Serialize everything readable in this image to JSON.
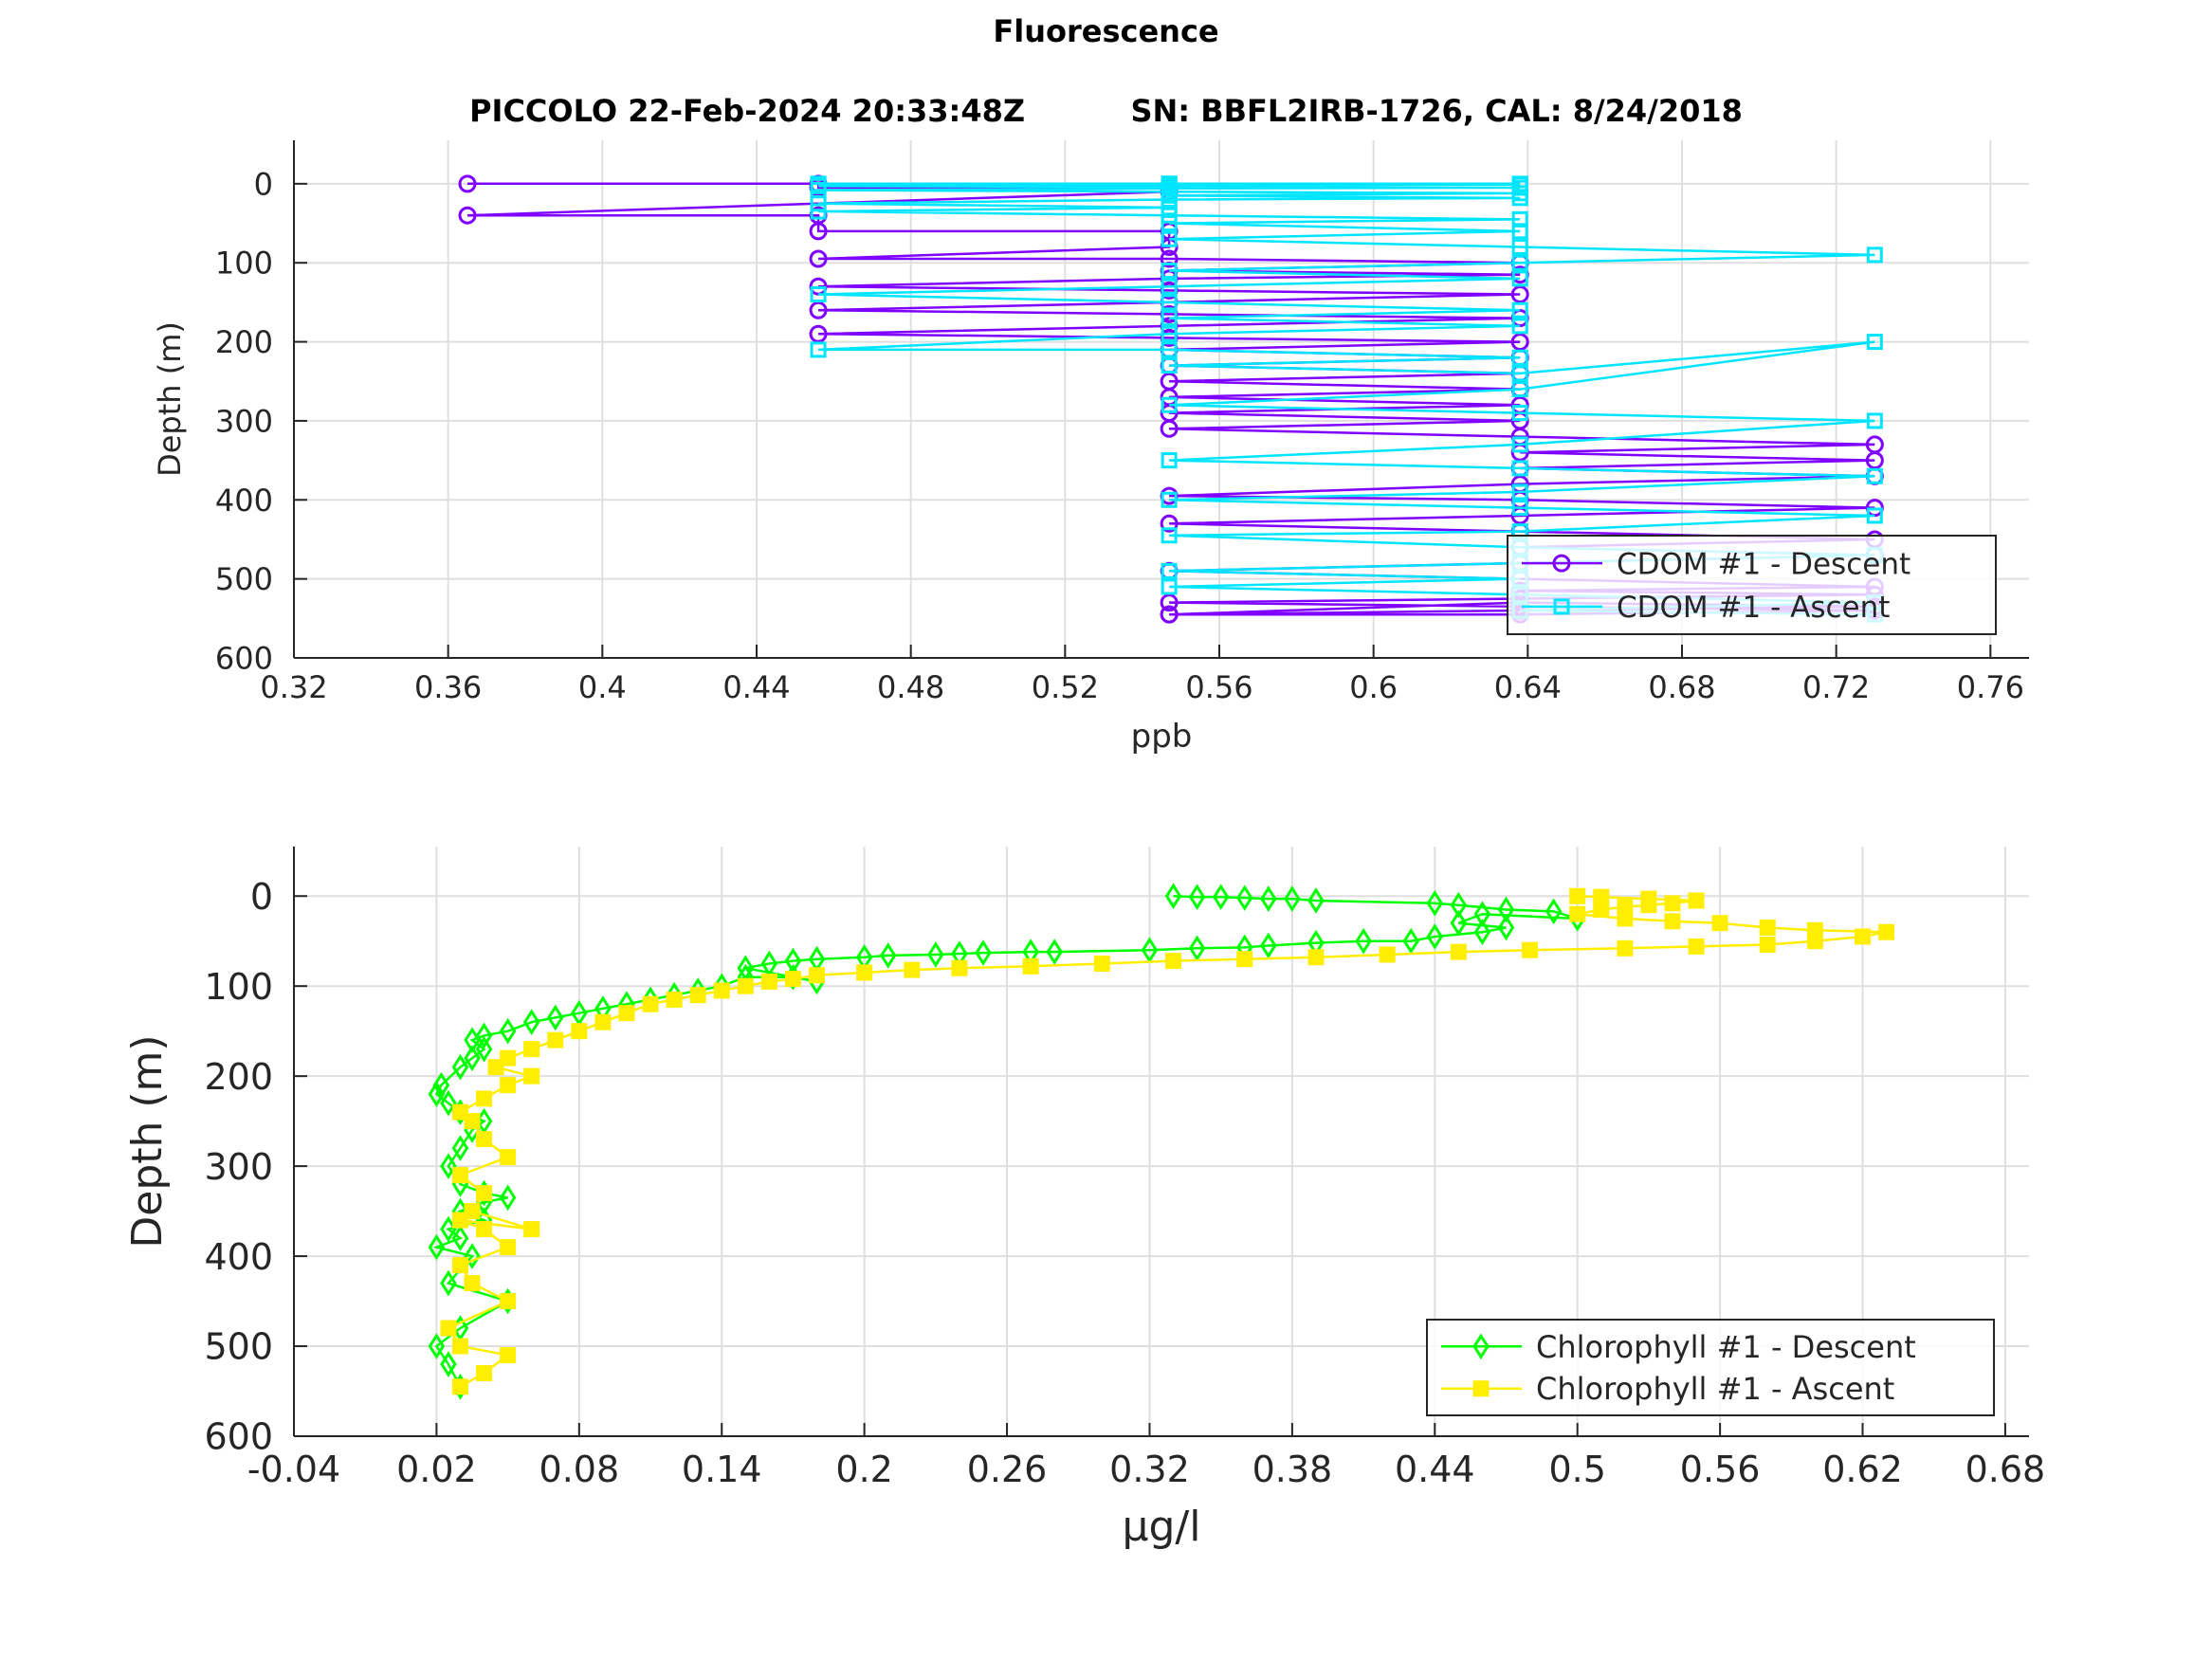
{
  "figure": {
    "title": "Fluorescence",
    "subtitle": "PICCOLO 22-Feb-2024 20:33:48Z          SN: BBFL2IRB-1726, CAL: 8/24/2018"
  },
  "chart_data": [
    {
      "type": "line",
      "xlabel": "ppb",
      "ylabel": "Depth (m)",
      "xlim": [
        0.32,
        0.77
      ],
      "ylim": [
        600,
        -55
      ],
      "y_reversed": true,
      "xticks": [
        "0.32",
        "0.36",
        "0.4",
        "0.44",
        "0.48",
        "0.52",
        "0.56",
        "0.6",
        "0.64",
        "0.68",
        "0.72",
        "0.76"
      ],
      "yticks": [
        "0",
        "100",
        "200",
        "300",
        "400",
        "500",
        "600"
      ],
      "grid": true,
      "legend_position": "bottom-right",
      "colors": {
        "descent": "#7f00ff",
        "ascent": "#00e5ff"
      },
      "series": [
        {
          "name": "CDOM #1 - Descent",
          "marker": "circle",
          "color": "#7f00ff",
          "x": [
            0.365,
            0.456,
            0.456,
            0.547,
            0.547,
            0.365,
            0.456,
            0.456,
            0.547,
            0.547,
            0.456,
            0.547,
            0.638,
            0.547,
            0.638,
            0.547,
            0.456,
            0.547,
            0.638,
            0.547,
            0.456,
            0.547,
            0.638,
            0.547,
            0.456,
            0.547,
            0.638,
            0.547,
            0.638,
            0.547,
            0.638,
            0.547,
            0.638,
            0.547,
            0.638,
            0.547,
            0.638,
            0.547,
            0.638,
            0.73,
            0.638,
            0.73,
            0.638,
            0.73,
            0.638,
            0.547,
            0.638,
            0.73,
            0.638,
            0.547,
            0.638,
            0.73,
            0.638,
            0.73,
            0.638,
            0.547,
            0.638,
            0.73,
            0.638,
            0.73,
            0.638,
            0.547,
            0.638,
            0.73,
            0.638,
            0.547,
            0.638,
            0.73,
            0.638,
            0.547
          ],
          "y": [
            0,
            0,
            5,
            5,
            10,
            40,
            40,
            60,
            60,
            80,
            95,
            95,
            100,
            110,
            115,
            120,
            130,
            135,
            140,
            150,
            160,
            165,
            170,
            180,
            190,
            195,
            200,
            210,
            220,
            230,
            240,
            250,
            260,
            270,
            280,
            290,
            300,
            310,
            320,
            330,
            340,
            350,
            360,
            370,
            380,
            395,
            400,
            410,
            420,
            430,
            440,
            450,
            460,
            470,
            480,
            490,
            500,
            510,
            515,
            520,
            525,
            530,
            535,
            540,
            545,
            545,
            540,
            535,
            530,
            545
          ]
        },
        {
          "name": "CDOM #1 - Ascent",
          "marker": "square",
          "color": "#00e5ff",
          "x": [
            0.73,
            0.638,
            0.73,
            0.638,
            0.547,
            0.638,
            0.547,
            0.638,
            0.73,
            0.638,
            0.547,
            0.638,
            0.73,
            0.638,
            0.547,
            0.638,
            0.73,
            0.638,
            0.547,
            0.638,
            0.73,
            0.638,
            0.547,
            0.638,
            0.73,
            0.638,
            0.547,
            0.638,
            0.547,
            0.456,
            0.547,
            0.638,
            0.547,
            0.638,
            0.547,
            0.456,
            0.547,
            0.638,
            0.547,
            0.638,
            0.73,
            0.638,
            0.547,
            0.638,
            0.547,
            0.638,
            0.547,
            0.456,
            0.547,
            0.456,
            0.547,
            0.638,
            0.547,
            0.638,
            0.547,
            0.456,
            0.547,
            0.638,
            0.547,
            0.456,
            0.547,
            0.638,
            0.547,
            0.456,
            0.547,
            0.638
          ],
          "y": [
            545,
            540,
            530,
            520,
            510,
            500,
            490,
            480,
            470,
            460,
            445,
            440,
            420,
            410,
            400,
            390,
            370,
            360,
            350,
            330,
            300,
            290,
            280,
            260,
            200,
            240,
            230,
            220,
            210,
            210,
            190,
            180,
            170,
            160,
            150,
            140,
            130,
            120,
            110,
            100,
            90,
            80,
            70,
            60,
            50,
            45,
            40,
            35,
            30,
            25,
            20,
            18,
            15,
            12,
            10,
            8,
            6,
            5,
            4,
            3,
            2,
            1,
            0,
            0,
            0,
            0
          ]
        }
      ]
    },
    {
      "type": "line",
      "xlabel": "μg/l",
      "ylabel": "Depth (m)",
      "xlim": [
        -0.04,
        0.69
      ],
      "ylim": [
        600,
        -55
      ],
      "y_reversed": true,
      "xticks": [
        "-0.04",
        "0.02",
        "0.08",
        "0.14",
        "0.2",
        "0.26",
        "0.32",
        "0.38",
        "0.44",
        "0.5",
        "0.56",
        "0.62",
        "0.68"
      ],
      "yticks": [
        "0",
        "100",
        "200",
        "300",
        "400",
        "500",
        "600"
      ],
      "grid": true,
      "legend_position": "bottom-right",
      "colors": {
        "descent": "#00ff00",
        "ascent": "#ffee00"
      },
      "series": [
        {
          "name": "Chlorophyll #1 - Descent",
          "marker": "diamond",
          "color": "#00ff00",
          "x": [
            0.33,
            0.34,
            0.35,
            0.36,
            0.37,
            0.38,
            0.39,
            0.44,
            0.45,
            0.47,
            0.49,
            0.5,
            0.46,
            0.45,
            0.47,
            0.46,
            0.44,
            0.43,
            0.41,
            0.39,
            0.37,
            0.36,
            0.34,
            0.32,
            0.28,
            0.27,
            0.25,
            0.24,
            0.23,
            0.21,
            0.2,
            0.18,
            0.17,
            0.16,
            0.15,
            0.18,
            0.17,
            0.15,
            0.14,
            0.13,
            0.12,
            0.11,
            0.1,
            0.09,
            0.08,
            0.07,
            0.06,
            0.05,
            0.04,
            0.035,
            0.04,
            0.035,
            0.03,
            0.022,
            0.02,
            0.025,
            0.03,
            0.04,
            0.035,
            0.03,
            0.025,
            0.03,
            0.04,
            0.05,
            0.04,
            0.03,
            0.04,
            0.025,
            0.03,
            0.02,
            0.035,
            0.025,
            0.05,
            0.03,
            0.02,
            0.025,
            0.03
          ],
          "y": [
            0,
            1,
            1,
            2,
            3,
            3,
            5,
            8,
            10,
            15,
            17,
            25,
            20,
            30,
            35,
            40,
            45,
            50,
            50,
            52,
            55,
            57,
            58,
            60,
            62,
            62,
            63,
            64,
            65,
            66,
            68,
            70,
            72,
            75,
            80,
            95,
            90,
            90,
            100,
            105,
            110,
            115,
            120,
            125,
            130,
            135,
            140,
            150,
            155,
            160,
            170,
            180,
            190,
            210,
            220,
            230,
            240,
            250,
            260,
            280,
            300,
            320,
            330,
            335,
            340,
            350,
            360,
            370,
            380,
            390,
            400,
            430,
            450,
            480,
            500,
            520,
            545
          ]
        },
        {
          "name": "Chlorophyll #1 - Ascent",
          "marker": "square",
          "color": "#ffee00",
          "x": [
            0.03,
            0.04,
            0.05,
            0.03,
            0.025,
            0.05,
            0.035,
            0.03,
            0.05,
            0.04,
            0.03,
            0.06,
            0.035,
            0.04,
            0.03,
            0.05,
            0.04,
            0.035,
            0.03,
            0.04,
            0.05,
            0.06,
            0.045,
            0.05,
            0.06,
            0.07,
            0.08,
            0.09,
            0.1,
            0.11,
            0.12,
            0.13,
            0.14,
            0.15,
            0.16,
            0.17,
            0.18,
            0.2,
            0.22,
            0.24,
            0.27,
            0.3,
            0.33,
            0.36,
            0.39,
            0.42,
            0.45,
            0.48,
            0.52,
            0.55,
            0.58,
            0.6,
            0.62,
            0.63,
            0.6,
            0.58,
            0.56,
            0.54,
            0.52,
            0.5,
            0.51,
            0.52,
            0.53,
            0.54,
            0.55,
            0.53,
            0.51,
            0.5
          ],
          "y": [
            545,
            530,
            510,
            500,
            480,
            450,
            430,
            410,
            390,
            370,
            360,
            370,
            350,
            330,
            310,
            290,
            270,
            250,
            240,
            225,
            210,
            200,
            190,
            180,
            170,
            160,
            150,
            140,
            130,
            120,
            115,
            110,
            105,
            100,
            95,
            92,
            88,
            85,
            82,
            80,
            78,
            75,
            72,
            70,
            68,
            65,
            62,
            60,
            58,
            56,
            54,
            50,
            45,
            40,
            38,
            35,
            30,
            28,
            25,
            20,
            15,
            12,
            10,
            8,
            5,
            3,
            1,
            0
          ]
        }
      ]
    }
  ]
}
